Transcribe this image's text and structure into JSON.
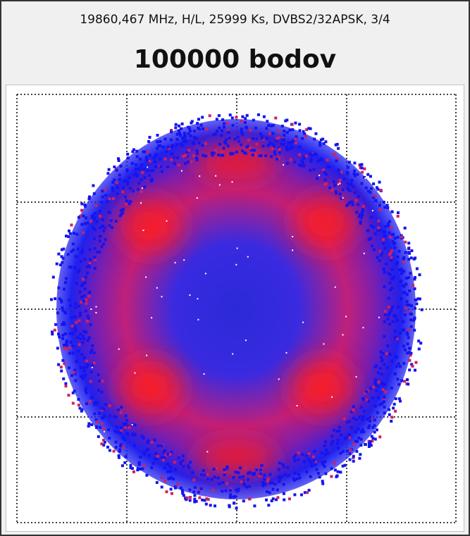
{
  "header": {
    "info": "19860,467 MHz, H/L, 25999 Ks, DVBS2/32APSK, 3/4",
    "title": "100000 bodov"
  }
}
